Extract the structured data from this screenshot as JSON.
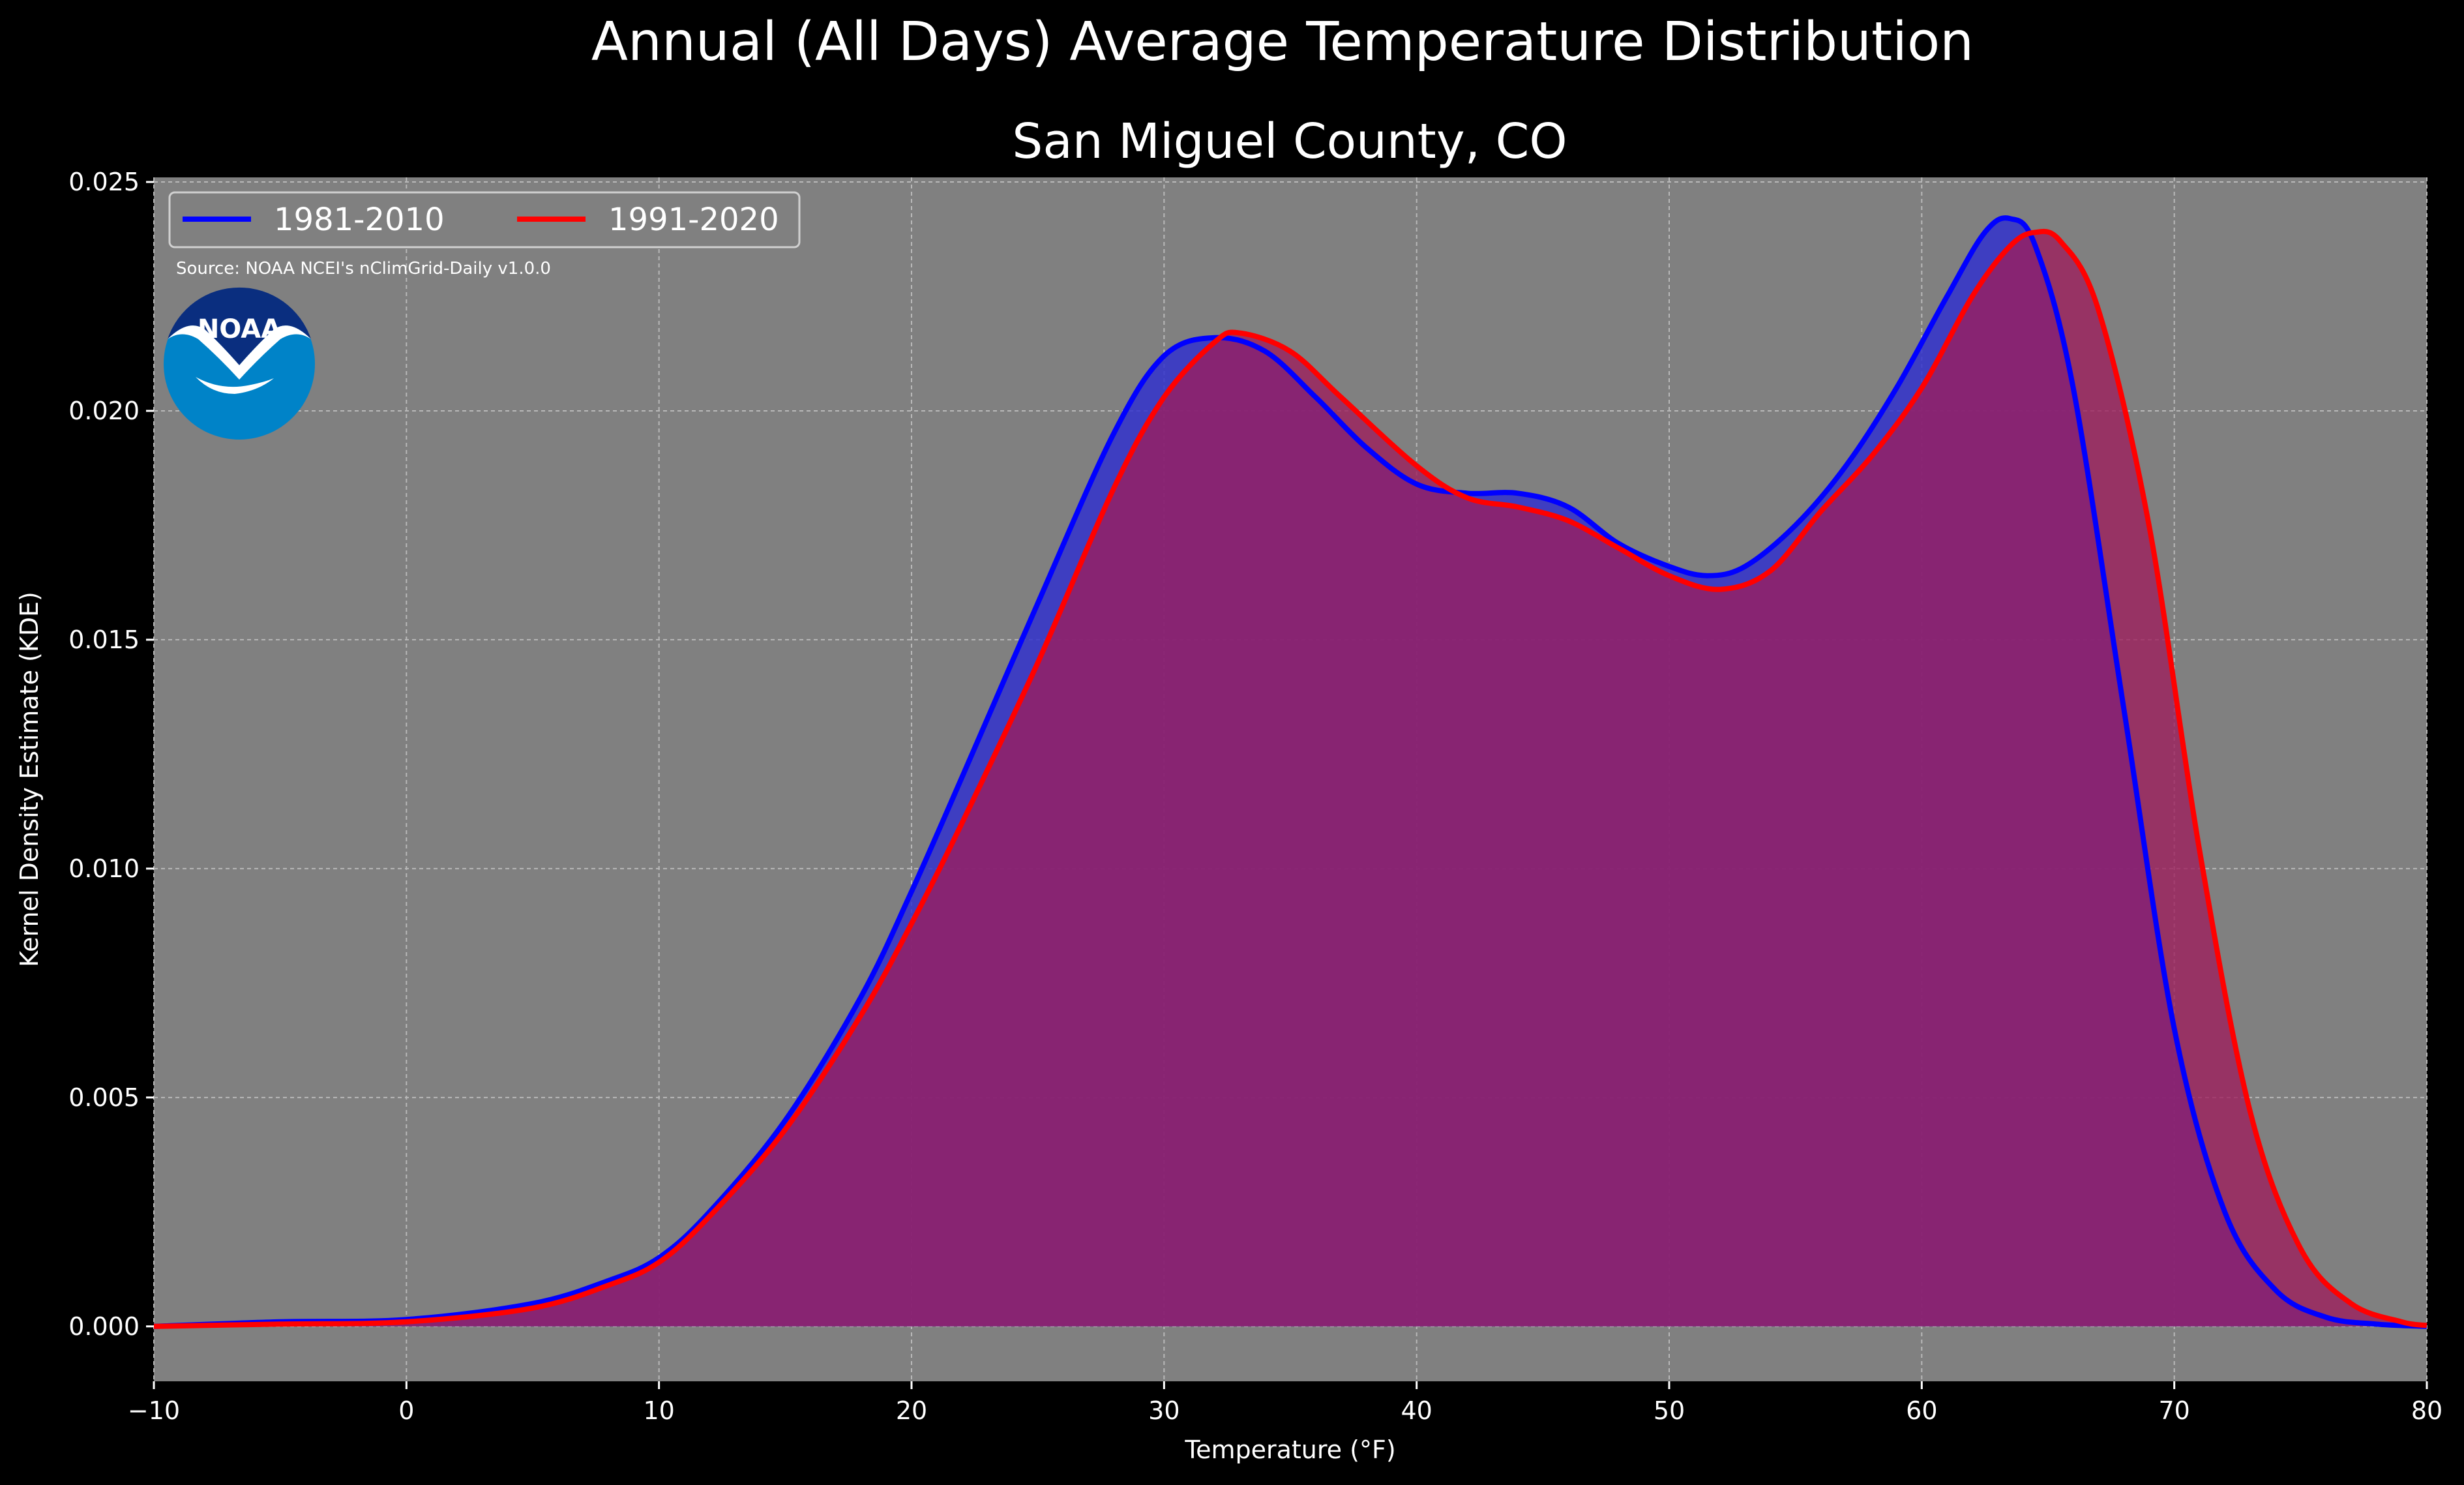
{
  "chart_data": {
    "type": "area",
    "title": "Annual (All Days) Average Temperature Distribution",
    "subtitle": "San Miguel County, CO",
    "xlabel": "Temperature (°F)",
    "ylabel": "Kernel Density Estimate (KDE)",
    "source": "Source: NOAA NCEI's nClimGrid-Daily v1.0.0",
    "logo_text": "NOAA",
    "xlim": [
      -10,
      80
    ],
    "ylim": [
      -0.0012,
      0.0251
    ],
    "xticks": [
      -10,
      0,
      10,
      20,
      30,
      40,
      50,
      60,
      70,
      80
    ],
    "yticks": [
      0.0,
      0.005,
      0.01,
      0.015,
      0.02,
      0.025
    ],
    "xtick_labels": [
      "−10",
      "0",
      "10",
      "20",
      "30",
      "40",
      "50",
      "60",
      "70",
      "80"
    ],
    "ytick_labels": [
      "0.000",
      "0.005",
      "0.010",
      "0.015",
      "0.020",
      "0.025"
    ],
    "grid": true,
    "legend_position": "top-left",
    "colors": {
      "background": "#000000",
      "plot_bg": "#808080",
      "series1": "#0000ff",
      "series1_fill": "#3333cc",
      "series2": "#ff0000",
      "overlap_fill": "#9e1e5c",
      "text": "#ffffff"
    },
    "series": [
      {
        "name": "1981-2010",
        "x": [
          -10,
          -5,
          0,
          5,
          8,
          10,
          12,
          15,
          18,
          20,
          22,
          25,
          28,
          30,
          32,
          34,
          36,
          38,
          40,
          42,
          44,
          46,
          48,
          50,
          51.5,
          53,
          55,
          57,
          59,
          61,
          62.5,
          63.5,
          64.5,
          66,
          68,
          70,
          72,
          74,
          76,
          78,
          80
        ],
        "y": [
          0.0,
          0.0001,
          0.00015,
          0.0005,
          0.001,
          0.0015,
          0.0025,
          0.0045,
          0.0072,
          0.0095,
          0.012,
          0.0158,
          0.0195,
          0.0212,
          0.0216,
          0.0213,
          0.0203,
          0.0192,
          0.0184,
          0.0182,
          0.0182,
          0.0179,
          0.0171,
          0.0166,
          0.0164,
          0.0166,
          0.0175,
          0.0188,
          0.0205,
          0.0225,
          0.0239,
          0.0242,
          0.0236,
          0.0205,
          0.0135,
          0.0065,
          0.0025,
          0.0008,
          0.0002,
          5e-05,
          0.0
        ]
      },
      {
        "name": "1991-2020",
        "x": [
          -10,
          -5,
          0,
          5,
          8,
          10,
          12,
          15,
          18,
          20,
          22,
          25,
          28,
          30,
          32,
          33,
          35,
          37,
          40,
          42,
          44,
          46,
          48,
          50,
          52,
          54,
          56,
          58,
          60,
          62,
          63.5,
          64.5,
          65.5,
          67,
          69,
          71,
          73,
          75,
          77,
          79,
          80
        ],
        "y": [
          0.0,
          5e-05,
          0.0001,
          0.0004,
          0.0009,
          0.0014,
          0.0024,
          0.0043,
          0.0068,
          0.0088,
          0.011,
          0.0145,
          0.0183,
          0.0203,
          0.0215,
          0.0217,
          0.0213,
          0.0203,
          0.0188,
          0.0181,
          0.0179,
          0.0176,
          0.017,
          0.0164,
          0.0161,
          0.0165,
          0.0178,
          0.019,
          0.0205,
          0.0225,
          0.0236,
          0.0239,
          0.0237,
          0.0222,
          0.0175,
          0.0104,
          0.0047,
          0.0017,
          0.0005,
          0.0001,
          2e-05
        ]
      }
    ]
  }
}
